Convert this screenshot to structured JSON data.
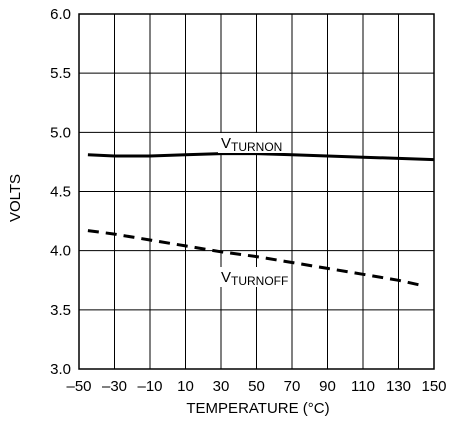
{
  "chart_data": {
    "type": "line",
    "title": "",
    "xlabel": "TEMPERATURE (°C)",
    "ylabel": "VOLTS",
    "xlim": [
      -50,
      150
    ],
    "ylim": [
      3.0,
      6.0
    ],
    "x_ticks": [
      -50,
      -30,
      -10,
      10,
      30,
      50,
      70,
      90,
      110,
      130,
      150
    ],
    "x_tick_labels": [
      "–50",
      "–30",
      "–10",
      "10",
      "30",
      "50",
      "70",
      "90",
      "110",
      "130",
      "150"
    ],
    "y_ticks": [
      3.0,
      3.5,
      4.0,
      4.5,
      5.0,
      5.5,
      6.0
    ],
    "y_tick_labels": [
      "3.0",
      "3.5",
      "4.0",
      "4.5",
      "5.0",
      "5.5",
      "6.0"
    ],
    "grid": true,
    "series": [
      {
        "name_main": "V",
        "name_sub": "TURNON",
        "style": "solid",
        "color": "#000000",
        "x": [
          -45,
          -30,
          -10,
          10,
          30,
          50,
          70,
          90,
          110,
          130,
          150
        ],
        "y": [
          4.81,
          4.8,
          4.8,
          4.81,
          4.82,
          4.82,
          4.81,
          4.8,
          4.79,
          4.78,
          4.77
        ]
      },
      {
        "name_main": "V",
        "name_sub": "TURNOFF",
        "style": "dashed",
        "color": "#000000",
        "x": [
          -45,
          -30,
          -10,
          10,
          30,
          50,
          70,
          90,
          110,
          130,
          145
        ],
        "y": [
          4.17,
          4.14,
          4.09,
          4.04,
          3.99,
          3.95,
          3.9,
          3.85,
          3.8,
          3.75,
          3.7
        ]
      }
    ]
  }
}
